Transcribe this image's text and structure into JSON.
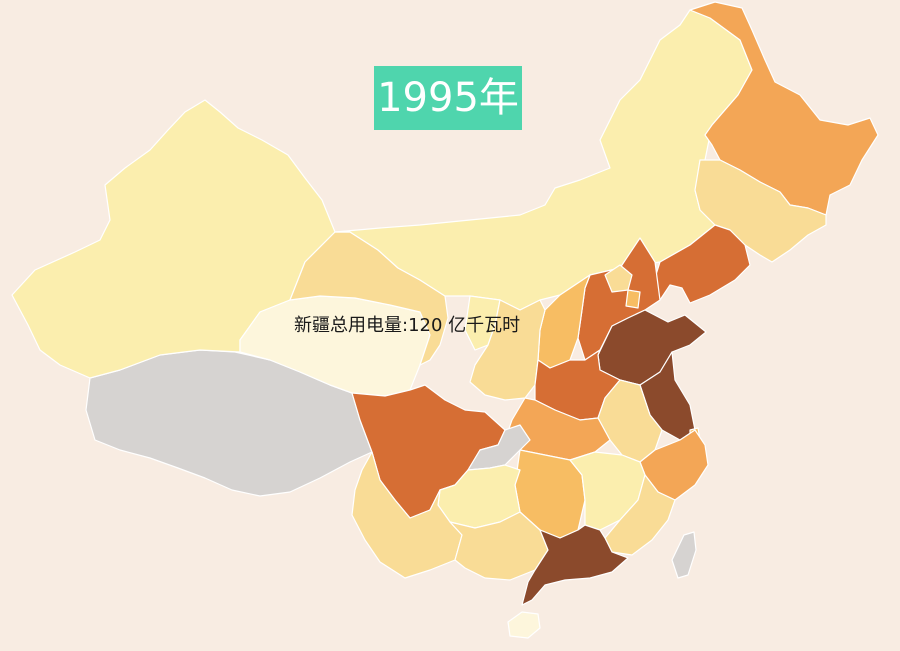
{
  "year_label": "1995年",
  "tooltip": {
    "text": "新疆总用电量:120 亿千瓦时"
  },
  "colors": {
    "background": "#f8ece2",
    "badge": "#4fd5ad",
    "no_data": "#d6d3d1",
    "scale": [
      "#fdf6dc",
      "#fbeeae",
      "#f9dc96",
      "#f7bd63",
      "#f3a656",
      "#d66e34",
      "#8b4a2c"
    ]
  },
  "regions": [
    {
      "name": "新疆",
      "value": 120,
      "level": 1
    },
    {
      "name": "西藏",
      "level": -1
    },
    {
      "name": "青海",
      "level": 0
    },
    {
      "name": "甘肃",
      "level": 2
    },
    {
      "name": "内蒙古",
      "level": 1
    },
    {
      "name": "黑龙江",
      "level": 4
    },
    {
      "name": "吉林",
      "level": 2
    },
    {
      "name": "辽宁",
      "level": 5
    },
    {
      "name": "河北",
      "level": 5
    },
    {
      "name": "北京",
      "level": 2
    },
    {
      "name": "天津",
      "level": 3
    },
    {
      "name": "山西",
      "level": 3
    },
    {
      "name": "宁夏",
      "level": 1
    },
    {
      "name": "陕西",
      "level": 2
    },
    {
      "name": "山东",
      "level": 6
    },
    {
      "name": "河南",
      "level": 5
    },
    {
      "name": "江苏",
      "level": 6
    },
    {
      "name": "安徽",
      "level": 2
    },
    {
      "name": "湖北",
      "level": 4
    },
    {
      "name": "四川",
      "level": 5
    },
    {
      "name": "重庆",
      "level": -1
    },
    {
      "name": "浙江",
      "level": 4
    },
    {
      "name": "上海",
      "level": 3
    },
    {
      "name": "湖南",
      "level": 3
    },
    {
      "name": "江西",
      "level": 1
    },
    {
      "name": "贵州",
      "level": 1
    },
    {
      "name": "云南",
      "level": 2
    },
    {
      "name": "广西",
      "level": 2
    },
    {
      "name": "福建",
      "level": 2
    },
    {
      "name": "广东",
      "level": 6
    },
    {
      "name": "海南",
      "level": 0
    },
    {
      "name": "台湾",
      "level": -1
    }
  ]
}
